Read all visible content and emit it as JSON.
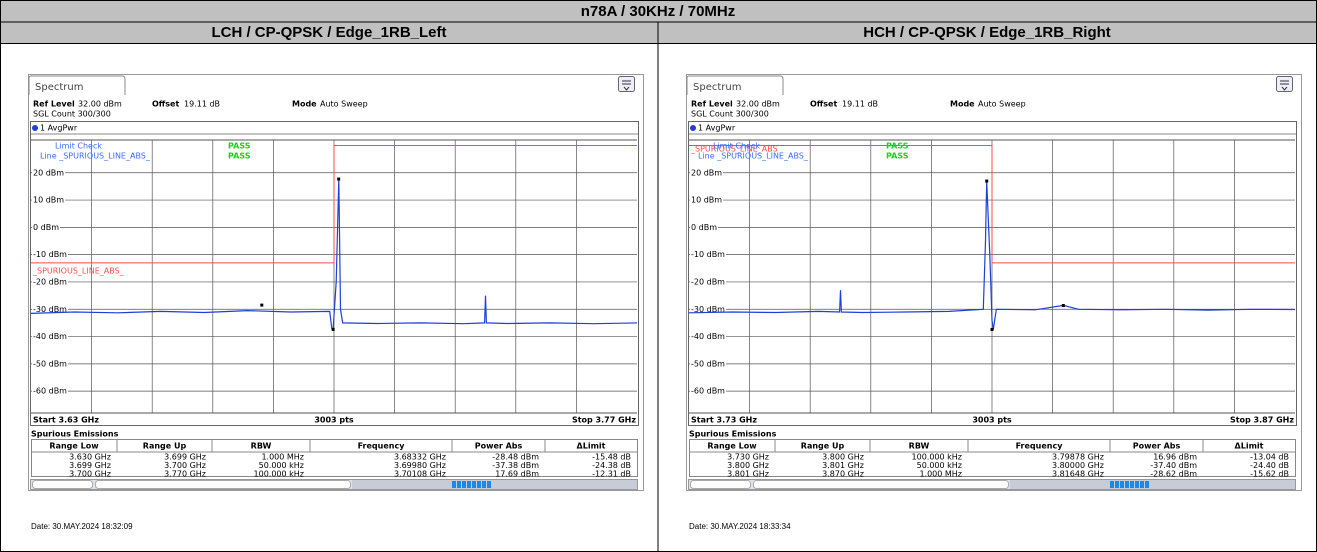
{
  "title": "n78A / 30KHz / 70MHz",
  "panels": [
    {
      "heading": "LCH / CP-QPSK / Edge_1RB_Left",
      "tab": "Spectrum",
      "ref_label": "Ref Level",
      "ref_value": "32.00 dBm",
      "offset_label": "Offset",
      "offset_value": "19.11 dB",
      "mode_label": "Mode",
      "mode_value": "Auto Sweep",
      "sgl": "SGL Count 300/300",
      "trace_name": "1 AvgPwr",
      "limit_check": [
        {
          "label": "Limit Check",
          "result": "PASS"
        },
        {
          "label": "Line _SPURIOUS_LINE_ABS_",
          "result": "PASS"
        }
      ],
      "limit_name": "_SPURIOUS_LINE_ABS_",
      "chart": {
        "xlim": [
          3.63,
          3.77
        ],
        "ylim": [
          -68,
          32
        ],
        "yticks": [
          {
            "value": 20,
            "label": "20 dBm"
          },
          {
            "value": 10,
            "label": "10 dBm"
          },
          {
            "value": 0,
            "label": "0 dBm"
          },
          {
            "value": -10,
            "label": "-10 dBm"
          },
          {
            "value": -20,
            "label": "-20 dBm"
          },
          {
            "value": -30,
            "label": "-30 dBm"
          },
          {
            "value": -40,
            "label": "-40 dBm"
          },
          {
            "value": -50,
            "label": "-50 dBm"
          },
          {
            "value": -60,
            "label": "-60 dBm"
          }
        ],
        "start": "Start 3.63 GHz",
        "points": "3003 pts",
        "stop": "Stop 3.77 GHz",
        "trace": {
          "x": [
            3.63,
            3.64,
            3.65,
            3.66,
            3.67,
            3.68,
            3.69,
            3.699,
            3.6995,
            3.6998,
            3.7005,
            3.7011,
            3.7015,
            3.702,
            3.71,
            3.72,
            3.73,
            3.7348,
            3.735,
            3.7352,
            3.74,
            3.75,
            3.76,
            3.77
          ],
          "y": [
            -31.5,
            -31,
            -31.3,
            -30.8,
            -31.2,
            -30.5,
            -31,
            -30.8,
            -37,
            -37.4,
            -20,
            17.7,
            -30,
            -35,
            -35.2,
            -35,
            -35.3,
            -35,
            -25,
            -35,
            -35.2,
            -35,
            -35.3,
            -35
          ]
        },
        "limit": {
          "x": [
            3.63,
            3.7,
            3.7,
            3.77
          ],
          "y": [
            -13,
            -13,
            30,
            30
          ]
        },
        "markers": {
          "x": [
            3.68332,
            3.6998,
            3.70108
          ],
          "y": [
            -28.48,
            -37.38,
            17.69
          ]
        }
      },
      "table": {
        "title": "Spurious Emissions",
        "columns": [
          "Range Low",
          "Range Up",
          "RBW",
          "Frequency",
          "Power Abs",
          "ΔLimit"
        ],
        "rows": [
          [
            "3.630 GHz",
            "3.699 GHz",
            "1.000 MHz",
            "3.68332 GHz",
            "-28.48 dBm",
            "-15.48 dB"
          ],
          [
            "3.699 GHz",
            "3.700 GHz",
            "50.000 kHz",
            "3.69980 GHz",
            "-37.38 dBm",
            "-24.38 dB"
          ],
          [
            "3.700 GHz",
            "3.770 GHz",
            "100.000 kHz",
            "3.70108 GHz",
            "17.69 dBm",
            "-12.31 dB"
          ]
        ]
      },
      "date": "Date: 30.MAY.2024 18:32:09"
    },
    {
      "heading": "HCH / CP-QPSK / Edge_1RB_Right",
      "tab": "Spectrum",
      "ref_label": "Ref Level",
      "ref_value": "32.00 dBm",
      "offset_label": "Offset",
      "offset_value": "19.11 dB",
      "mode_label": "Mode",
      "mode_value": "Auto Sweep",
      "sgl": "SGL Count 300/300",
      "trace_name": "1 AvgPwr",
      "limit_check": [
        {
          "label": "Limit Check",
          "result": "PASS"
        },
        {
          "label": "Line _SPURIOUS_LINE_ABS_",
          "result": "PASS"
        }
      ],
      "limit_name": "_SPURIOUS_LINE_ABS",
      "chart": {
        "xlim": [
          3.73,
          3.87
        ],
        "ylim": [
          -68,
          32
        ],
        "yticks": [
          {
            "value": 20,
            "label": "20 dBm"
          },
          {
            "value": 10,
            "label": "10 dBm"
          },
          {
            "value": 0,
            "label": "0 dBm"
          },
          {
            "value": -10,
            "label": "-10 dBm"
          },
          {
            "value": -20,
            "label": "-20 dBm"
          },
          {
            "value": -30,
            "label": "-30 dBm"
          },
          {
            "value": -40,
            "label": "-40 dBm"
          },
          {
            "value": -50,
            "label": "-50 dBm"
          },
          {
            "value": -60,
            "label": "-60 dBm"
          }
        ],
        "start": "Start 3.73 GHz",
        "points": "3003 pts",
        "stop": "Stop 3.87 GHz",
        "trace": {
          "x": [
            3.73,
            3.74,
            3.75,
            3.76,
            3.7648,
            3.765,
            3.7652,
            3.77,
            3.78,
            3.79,
            3.798,
            3.7985,
            3.79878,
            3.7995,
            3.8,
            3.8003,
            3.801,
            3.81,
            3.8165,
            3.82,
            3.83,
            3.84,
            3.85,
            3.86,
            3.87
          ],
          "y": [
            -31.3,
            -31,
            -31.2,
            -30.8,
            -31,
            -23,
            -31,
            -31.2,
            -31,
            -30.8,
            -30,
            -5,
            16.96,
            -10,
            -34,
            -37.4,
            -30,
            -30.2,
            -28.6,
            -30,
            -30.2,
            -30,
            -30.3,
            -30,
            -30.1
          ]
        },
        "limit": {
          "x": [
            3.73,
            3.8,
            3.8,
            3.87
          ],
          "y": [
            30,
            30,
            -13,
            -13
          ]
        },
        "markers": {
          "x": [
            3.79878,
            3.8,
            3.81648
          ],
          "y": [
            16.96,
            -37.4,
            -28.62
          ]
        }
      },
      "table": {
        "title": "Spurious Emissions",
        "columns": [
          "Range Low",
          "Range Up",
          "RBW",
          "Frequency",
          "Power Abs",
          "ΔLimit"
        ],
        "rows": [
          [
            "3.730 GHz",
            "3.800 GHz",
            "100.000 kHz",
            "3.79878 GHz",
            "16.96 dBm",
            "-13.04 dB"
          ],
          [
            "3.800 GHz",
            "3.801 GHz",
            "50.000 kHz",
            "3.80000 GHz",
            "-37.40 dBm",
            "-24.40 dB"
          ],
          [
            "3.801 GHz",
            "3.870 GHz",
            "1.000 MHz",
            "3.81648 GHz",
            "-28.62 dBm",
            "-15.62 dB"
          ]
        ]
      },
      "date": "Date: 30.MAY.2024 18:33:34"
    }
  ]
}
